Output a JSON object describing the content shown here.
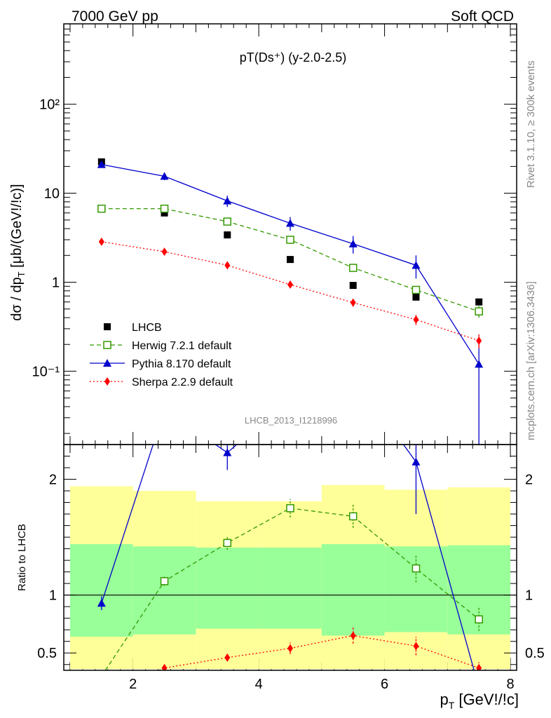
{
  "header": {
    "left": "7000 GeV pp",
    "right": "Soft QCD"
  },
  "side_labels": {
    "rivet": "Rivet 3.1.10, ≥ 300k events",
    "mcplots": "mcplots.cern.ch [arXiv:1306.3436]"
  },
  "chart_data": [
    {
      "type": "line",
      "title": "pT(Ds⁺) (y-2.0-2.5)",
      "watermark": "LHCB_2013_I1218996",
      "ylabel": "dσ / dp_T [μb/(GeV!/!c)]",
      "yscale": "log",
      "ylim": [
        0.015,
        800
      ],
      "xlim": [
        0.9,
        8.1
      ],
      "y_ticks": [
        "10⁻¹",
        "1",
        "10",
        "10²"
      ],
      "legend_position": "bottom-left",
      "x": [
        1.5,
        2.5,
        3.5,
        4.5,
        5.5,
        6.5,
        7.5
      ],
      "series": [
        {
          "name": "LHCB",
          "color": "#000000",
          "marker": "filled-square",
          "line": "none",
          "values": [
            22.5,
            6.0,
            3.4,
            1.8,
            0.92,
            0.68,
            0.6
          ]
        },
        {
          "name": "Herwig 7.2.1 default",
          "color": "#339900",
          "marker": "open-square",
          "line": "dashed",
          "values": [
            6.7,
            6.7,
            4.8,
            3.0,
            1.45,
            0.82,
            0.47
          ],
          "errors": [
            0.3,
            0.3,
            0.35,
            0.25,
            0.12,
            0.08,
            0.07
          ]
        },
        {
          "name": "Pythia 8.170 default",
          "color": "#0000cc",
          "marker": "filled-triangle",
          "line": "solid",
          "values": [
            21.0,
            15.5,
            8.2,
            4.6,
            2.7,
            1.55,
            0.12
          ],
          "errors": [
            1.5,
            1.5,
            1.2,
            0.8,
            0.6,
            0.45,
            0.11
          ]
        },
        {
          "name": "Sherpa 2.2.9 default",
          "color": "#ff0000",
          "marker": "filled-diamond",
          "line": "dotted",
          "values": [
            2.85,
            2.2,
            1.55,
            0.94,
            0.59,
            0.38,
            0.22
          ],
          "errors": [
            0.1,
            0.1,
            0.08,
            0.07,
            0.06,
            0.05,
            0.04
          ]
        }
      ]
    },
    {
      "type": "line",
      "xlabel": "p_T [GeV!/!c]",
      "ylabel": "Ratio to LHCB",
      "ylim": [
        0.35,
        2.3
      ],
      "xlim": [
        0.9,
        8.1
      ],
      "x_ticks": [
        "2",
        "4",
        "6",
        "8"
      ],
      "y_ticks": [
        "0.5",
        "1",
        "2"
      ],
      "reference_line": 1,
      "bands": {
        "bins": [
          [
            1.0,
            2.0
          ],
          [
            2.0,
            3.0
          ],
          [
            3.0,
            4.0
          ],
          [
            4.0,
            5.0
          ],
          [
            5.0,
            6.0
          ],
          [
            6.0,
            7.0
          ],
          [
            7.0,
            8.0
          ]
        ],
        "inner": [
          [
            0.64,
            1.44
          ],
          [
            0.66,
            1.42
          ],
          [
            0.71,
            1.41
          ],
          [
            0.71,
            1.41
          ],
          [
            0.65,
            1.44
          ],
          [
            0.68,
            1.42
          ],
          [
            0.66,
            1.43
          ]
        ],
        "outer": [
          [
            0.36,
            1.94
          ],
          [
            0.36,
            1.9
          ],
          [
            0.36,
            1.81
          ],
          [
            0.36,
            1.81
          ],
          [
            0.36,
            1.95
          ],
          [
            0.36,
            1.91
          ],
          [
            0.36,
            1.93
          ]
        ],
        "inner_color": "#99ff99",
        "outer_color": "#ffff99"
      },
      "x": [
        1.5,
        2.5,
        3.5,
        4.5,
        5.5,
        6.5,
        7.5
      ],
      "series": [
        {
          "name": "Herwig 7.2.1 default",
          "color": "#339900",
          "values": [
            0.3,
            1.12,
            1.45,
            1.75,
            1.68,
            1.23,
            0.79
          ],
          "errors": [
            0.02,
            0.04,
            0.06,
            0.08,
            0.1,
            0.12,
            0.1
          ]
        },
        {
          "name": "Pythia 8.170 default",
          "color": "#0000cc",
          "values": [
            0.93,
            2.6,
            2.23,
            2.7,
            2.9,
            2.15,
            0.2
          ],
          "errors": [
            0.06,
            0.1,
            0.15,
            0.2,
            0.3,
            0.45,
            0.2
          ]
        },
        {
          "name": "Sherpa 2.2.9 default",
          "color": "#ff0000",
          "values": [
            0.13,
            0.37,
            0.46,
            0.54,
            0.65,
            0.56,
            0.37
          ],
          "errors": [
            0.01,
            0.02,
            0.03,
            0.05,
            0.07,
            0.08,
            0.05
          ]
        }
      ]
    }
  ]
}
